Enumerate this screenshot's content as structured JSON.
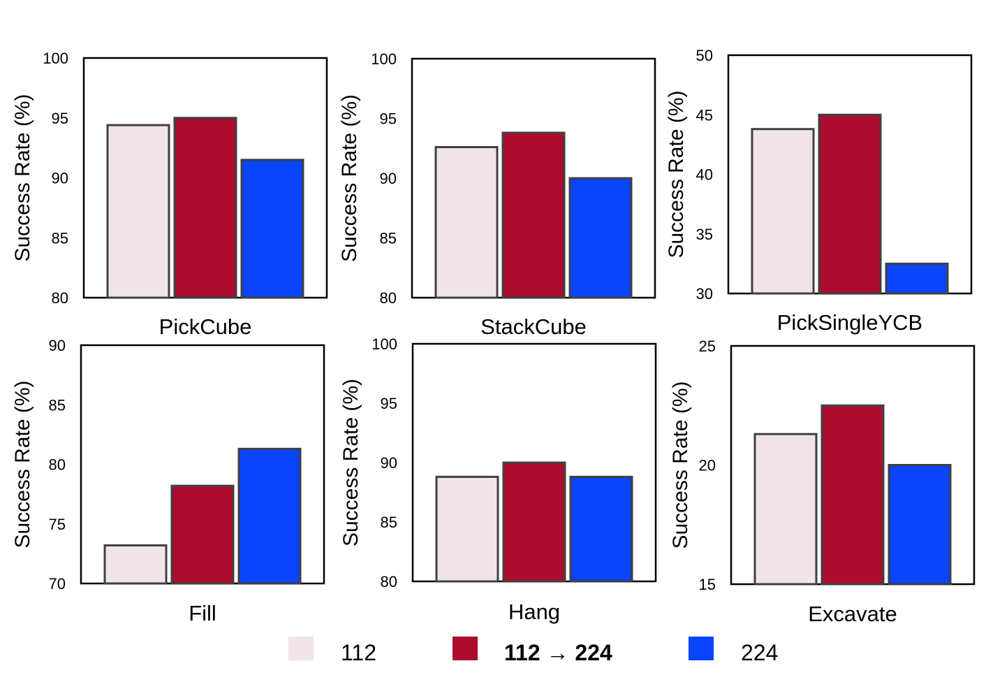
{
  "chart_data": [
    {
      "type": "bar",
      "title": "PickCube",
      "ylabel": "Success Rate (%)",
      "ylim": [
        80,
        100
      ],
      "yticks": [
        80,
        85,
        90,
        95,
        100
      ],
      "series_values": [
        94.4,
        95.0,
        91.5
      ]
    },
    {
      "type": "bar",
      "title": "StackCube",
      "ylabel": "Success Rate (%)",
      "ylim": [
        80,
        100
      ],
      "yticks": [
        80,
        85,
        90,
        95,
        100
      ],
      "series_values": [
        92.6,
        93.8,
        90.0
      ]
    },
    {
      "type": "bar",
      "title": "PickSingleYCB",
      "ylabel": "Success Rate (%)",
      "ylim": [
        30,
        50
      ],
      "yticks": [
        30,
        35,
        40,
        45,
        50
      ],
      "series_values": [
        43.8,
        45.0,
        32.5
      ]
    },
    {
      "type": "bar",
      "title": "Fill",
      "ylabel": "Success Rate (%)",
      "ylim": [
        70,
        90
      ],
      "yticks": [
        70,
        75,
        80,
        85,
        90
      ],
      "series_values": [
        73.2,
        78.2,
        81.3
      ]
    },
    {
      "type": "bar",
      "title": "Hang",
      "ylabel": "Success Rate (%)",
      "ylim": [
        80,
        100
      ],
      "yticks": [
        80,
        85,
        90,
        95,
        100
      ],
      "series_values": [
        88.8,
        90.0,
        88.8
      ]
    },
    {
      "type": "bar",
      "title": "Excavate",
      "ylabel": "Success Rate (%)",
      "ylim": [
        15,
        25
      ],
      "yticks": [
        15,
        20,
        25
      ],
      "series_values": [
        21.3,
        22.5,
        20.0
      ]
    }
  ],
  "legend": [
    {
      "label": "112",
      "color": "#f0e4e8",
      "bold": false
    },
    {
      "label": "112 → 224",
      "color": "#ae0c2e",
      "bold": true
    },
    {
      "label": "224",
      "color": "#0a44fb",
      "bold": false
    }
  ]
}
